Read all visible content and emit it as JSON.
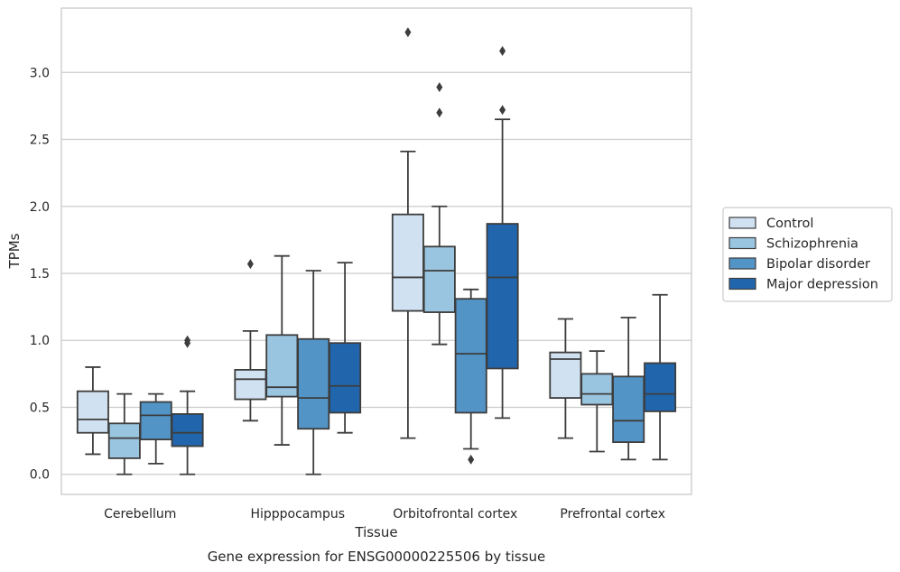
{
  "chart_data": {
    "type": "box",
    "title": "",
    "caption": "Gene expression for ENSG00000225506 by tissue",
    "xlabel": "Tissue",
    "ylabel": "TPMs",
    "ylim": [
      -0.15,
      3.48
    ],
    "yticks": [
      0.0,
      0.5,
      1.0,
      1.5,
      2.0,
      2.5,
      3.0
    ],
    "ytick_labels": [
      "0.0",
      "0.5",
      "1.0",
      "1.5",
      "2.0",
      "2.5",
      "3.0"
    ],
    "categories": [
      "Cerebellum",
      "Hipppocampus",
      "Orbitofrontal cortex",
      "Prefrontal cortex"
    ],
    "grid": "horizontal",
    "legend_position": "right",
    "series": [
      {
        "name": "Control",
        "color": "#d0e1f2",
        "boxes": [
          {
            "whislo": 0.15,
            "q1": 0.31,
            "med": 0.41,
            "q3": 0.62,
            "whishi": 0.8,
            "fliers": []
          },
          {
            "whislo": 0.4,
            "q1": 0.56,
            "med": 0.71,
            "q3": 0.78,
            "whishi": 1.07,
            "fliers": [
              1.57
            ]
          },
          {
            "whislo": 0.27,
            "q1": 1.22,
            "med": 1.47,
            "q3": 1.94,
            "whishi": 2.41,
            "fliers": [
              3.3
            ]
          },
          {
            "whislo": 0.27,
            "q1": 0.57,
            "med": 0.86,
            "q3": 0.91,
            "whishi": 1.16,
            "fliers": []
          }
        ]
      },
      {
        "name": "Schizophrenia",
        "color": "#9ac5e0",
        "boxes": [
          {
            "whislo": 0.0,
            "q1": 0.12,
            "med": 0.27,
            "q3": 0.38,
            "whishi": 0.6,
            "fliers": []
          },
          {
            "whislo": 0.22,
            "q1": 0.58,
            "med": 0.65,
            "q3": 1.04,
            "whishi": 1.63,
            "fliers": []
          },
          {
            "whislo": 0.97,
            "q1": 1.21,
            "med": 1.52,
            "q3": 1.7,
            "whishi": 2.0,
            "fliers": [
              2.7,
              2.89
            ]
          },
          {
            "whislo": 0.17,
            "q1": 0.52,
            "med": 0.6,
            "q3": 0.75,
            "whishi": 0.92,
            "fliers": []
          }
        ]
      },
      {
        "name": "Bipolar disorder",
        "color": "#5394c6",
        "boxes": [
          {
            "whislo": 0.08,
            "q1": 0.26,
            "med": 0.44,
            "q3": 0.54,
            "whishi": 0.6,
            "fliers": []
          },
          {
            "whislo": 0.0,
            "q1": 0.34,
            "med": 0.57,
            "q3": 1.01,
            "whishi": 1.52,
            "fliers": []
          },
          {
            "whislo": 0.19,
            "q1": 0.46,
            "med": 0.9,
            "q3": 1.31,
            "whishi": 1.38,
            "fliers": [
              0.11
            ]
          },
          {
            "whislo": 0.11,
            "q1": 0.24,
            "med": 0.4,
            "q3": 0.73,
            "whishi": 1.17,
            "fliers": []
          }
        ]
      },
      {
        "name": "Major depression",
        "color": "#2166ac",
        "boxes": [
          {
            "whislo": 0.0,
            "q1": 0.21,
            "med": 0.31,
            "q3": 0.45,
            "whishi": 0.62,
            "fliers": [
              0.98,
              1.0
            ]
          },
          {
            "whislo": 0.31,
            "q1": 0.46,
            "med": 0.66,
            "q3": 0.98,
            "whishi": 1.58,
            "fliers": []
          },
          {
            "whislo": 0.42,
            "q1": 0.79,
            "med": 1.47,
            "q3": 1.87,
            "whishi": 2.65,
            "fliers": [
              2.72,
              3.16
            ]
          },
          {
            "whislo": 0.11,
            "q1": 0.47,
            "med": 0.6,
            "q3": 0.83,
            "whishi": 1.34,
            "fliers": []
          }
        ]
      }
    ]
  }
}
